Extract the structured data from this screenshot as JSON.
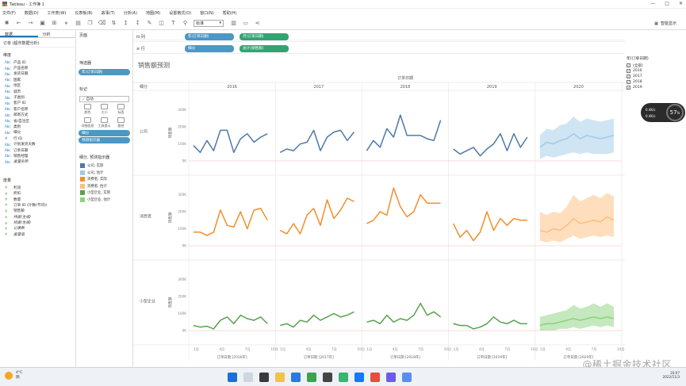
{
  "window": {
    "title": "Tableau - 工作簿 1",
    "controls": [
      "—",
      "□",
      "✕"
    ]
  },
  "menu": [
    "文件(F)",
    "数据(D)",
    "工作表(W)",
    "仪表板(B)",
    "故事(T)",
    "分析(A)",
    "地图(M)",
    "设置格式(O)",
    "窗口(N)",
    "帮助(H)"
  ],
  "toolbar": {
    "fit_select": "标准",
    "smart_label": "智能显示"
  },
  "datapane": {
    "tabs": [
      "数据",
      "分析"
    ],
    "source": "订单 (超市数据分析)",
    "dim_header": "维度",
    "dimensions": [
      {
        "t": "Abc",
        "n": "产品 ID"
      },
      {
        "t": "Abc",
        "n": "产品名称"
      },
      {
        "t": "Abc",
        "n": "发货日期"
      },
      {
        "t": "Abc",
        "n": "国家"
      },
      {
        "t": "Abc",
        "n": "地区"
      },
      {
        "t": "Abc",
        "n": "城市"
      },
      {
        "t": "Abc",
        "n": "子类别"
      },
      {
        "t": "Abc",
        "n": "客户 ID"
      },
      {
        "t": "Abc",
        "n": "客户名称"
      },
      {
        "t": "Abc",
        "n": "邮寄方式"
      },
      {
        "t": "Abc",
        "n": "省/自治区"
      },
      {
        "t": "Abc",
        "n": "类别"
      },
      {
        "t": "Abc",
        "n": "细分"
      },
      {
        "t": "#",
        "n": "行 ID"
      },
      {
        "t": "Abc",
        "n": "计划发货天数"
      },
      {
        "t": "Abc",
        "n": "订单日期"
      },
      {
        "t": "Abc",
        "n": "销售经理"
      },
      {
        "t": "Abc",
        "n": "度量名称",
        "italic": true
      }
    ],
    "meas_header": "度量",
    "measures": [
      {
        "t": "#",
        "n": "利润"
      },
      {
        "t": "#",
        "n": "折扣"
      },
      {
        "t": "#",
        "n": "数量"
      },
      {
        "t": "#",
        "n": "订单 ID (计数(不同))"
      },
      {
        "t": "#",
        "n": "销售额"
      },
      {
        "t": "⊕",
        "n": "纬度(生成)",
        "italic": true
      },
      {
        "t": "⊕",
        "n": "经度(生成)",
        "italic": true
      },
      {
        "t": "#",
        "n": "记录数",
        "italic": true
      },
      {
        "t": "#",
        "n": "度量值",
        "italic": true
      }
    ]
  },
  "cards": {
    "pages": "页面",
    "filters": "筛选器",
    "filter_pill": "年(订单日期)",
    "marks": "标记",
    "marks_type": "⟋ 自动",
    "mark_buttons": [
      "颜色",
      "大小",
      "标签",
      "详细信息",
      "工具提示",
      "路径"
    ],
    "mark_pills": [
      "细分",
      "预测指示器"
    ],
    "legend_title": "细分, 预测指示器",
    "legend": [
      {
        "label": "公司, 实际",
        "color": "#4e79a7"
      },
      {
        "label": "公司, 估计",
        "color": "#a0cbe8"
      },
      {
        "label": "消费者, 实际",
        "color": "#f28e2b"
      },
      {
        "label": "消费者, 估计",
        "color": "#ffbe7d"
      },
      {
        "label": "小型企业, 实际",
        "color": "#59a14f"
      },
      {
        "label": "小型企业, 估计",
        "color": "#8cd17d"
      }
    ]
  },
  "shelves": {
    "columns_label": "iii 列",
    "columns_pills": [
      "年(订单日期)",
      "月(订单日期)"
    ],
    "rows_label": "≡ 行",
    "rows_pills": [
      "细分",
      "总计(销售额)"
    ]
  },
  "view": {
    "title": "销售额预测",
    "top_axis": "订单日期",
    "corner": "细分",
    "years": [
      "2016",
      "2017",
      "2018",
      "2019",
      "2020"
    ],
    "segments": [
      "公司",
      "消费者",
      "小型企业"
    ],
    "y_label": "销售额",
    "y_ticks": [
      "0K",
      "100K",
      "200K",
      "300K"
    ],
    "month_ticks": [
      "1月",
      "4月",
      "7月",
      "10月"
    ],
    "bottom_labels": [
      "订单日期 [2016年]",
      "订单日期 [2017年]",
      "订单日期 [2018年]",
      "订单日期 [2019年]",
      "订单日期 [2020年]"
    ]
  },
  "chart_data": {
    "type": "line",
    "title": "销售额预测",
    "x_label": "订单日期",
    "y_label": "销售额",
    "ylim": [
      0,
      350000
    ],
    "years": [
      2016,
      2017,
      2018,
      2019,
      2020
    ],
    "series": [
      {
        "name": "公司",
        "actual": [
          [
            90,
            50,
            120,
            60,
            180,
            180,
            50,
            130,
            160,
            110,
            140,
            160
          ],
          [
            50,
            70,
            60,
            100,
            110,
            180,
            60,
            140,
            170,
            180,
            120,
            170
          ],
          [
            60,
            120,
            80,
            190,
            140,
            270,
            150,
            150,
            150,
            130,
            120,
            240
          ],
          [
            70,
            40,
            60,
            80,
            30,
            70,
            100,
            160,
            60,
            160,
            80,
            140
          ]
        ],
        "forecast": [
          80,
          110,
          100,
          120,
          130,
          160,
          130,
          150,
          140,
          130,
          140,
          150
        ],
        "band_low": [
          10,
          30,
          20,
          30,
          40,
          50,
          40,
          50,
          40,
          40,
          40,
          50
        ],
        "band_high": [
          150,
          190,
          180,
          210,
          220,
          260,
          230,
          250,
          240,
          230,
          240,
          250
        ]
      },
      {
        "name": "消费者",
        "actual": [
          [
            80,
            80,
            60,
            80,
            210,
            120,
            110,
            200,
            100,
            210,
            220,
            150
          ],
          [
            90,
            70,
            130,
            70,
            180,
            220,
            120,
            270,
            160,
            210,
            280,
            260
          ],
          [
            130,
            150,
            200,
            180,
            340,
            230,
            170,
            200,
            300,
            250,
            250,
            250
          ],
          [
            130,
            50,
            90,
            30,
            80,
            200,
            90,
            160,
            120,
            160,
            150,
            150
          ]
        ],
        "forecast": [
          90,
          80,
          100,
          90,
          120,
          160,
          130,
          140,
          150,
          140,
          170,
          150
        ],
        "band_low": [
          30,
          20,
          30,
          20,
          40,
          60,
          40,
          50,
          60,
          50,
          60,
          50
        ],
        "band_high": [
          200,
          180,
          200,
          190,
          230,
          300,
          260,
          280,
          300,
          280,
          310,
          290
        ]
      },
      {
        "name": "小型企业",
        "actual": [
          [
            30,
            20,
            25,
            10,
            60,
            80,
            40,
            90,
            70,
            60,
            80,
            40
          ],
          [
            30,
            40,
            20,
            60,
            50,
            90,
            60,
            80,
            100,
            80,
            90,
            110
          ],
          [
            50,
            60,
            40,
            90,
            50,
            70,
            60,
            90,
            160,
            90,
            110,
            80
          ],
          [
            40,
            30,
            30,
            10,
            20,
            40,
            80,
            50,
            40,
            60,
            40,
            40
          ]
        ],
        "forecast": [
          30,
          40,
          40,
          50,
          60,
          70,
          60,
          70,
          80,
          70,
          80,
          70
        ],
        "band_low": [
          0,
          0,
          0,
          10,
          10,
          20,
          10,
          20,
          30,
          20,
          30,
          20
        ],
        "band_high": [
          80,
          90,
          100,
          110,
          120,
          150,
          130,
          140,
          160,
          140,
          160,
          140
        ]
      }
    ]
  },
  "filter_card": {
    "title": "年(订单日期)",
    "items": [
      {
        "label": "(全部)",
        "checked": true
      },
      {
        "label": "2016",
        "checked": true
      },
      {
        "label": "2017",
        "checked": true
      },
      {
        "label": "2018",
        "checked": true
      },
      {
        "label": "2019",
        "checked": true
      }
    ]
  },
  "perf": {
    "value": "57",
    "unit": "%",
    "up": "0.4K/s",
    "down": "0.4K/s"
  },
  "taskbar": {
    "temp": "4°C",
    "weather": "阴",
    "time": "16:07",
    "date": "2022/11/3"
  },
  "watermark": "@稀土掘金技术社区"
}
